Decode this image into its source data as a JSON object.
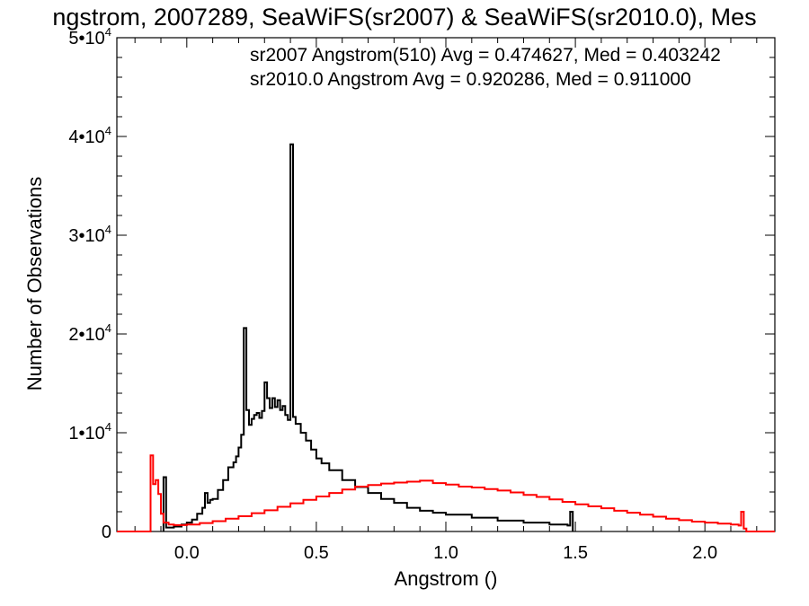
{
  "chart_data": {
    "type": "line",
    "title": "ngstrom, 2007289, SeaWiFS(sr2007) & SeaWiFS(sr2010.0), Mes",
    "xlabel": "Angstrom ()",
    "ylabel": "Number of Observations",
    "xlim": [
      -0.27,
      2.27
    ],
    "ylim": [
      0,
      50000
    ],
    "x_ticks": [
      {
        "value": 0.0,
        "label": "0.0"
      },
      {
        "value": 0.5,
        "label": "0.5"
      },
      {
        "value": 1.0,
        "label": "1.0"
      },
      {
        "value": 1.5,
        "label": "1.5"
      },
      {
        "value": 2.0,
        "label": "2.0"
      }
    ],
    "y_ticks": [
      {
        "value": 0,
        "mantissa": "0",
        "exponent": ""
      },
      {
        "value": 10000,
        "mantissa": "1•10",
        "exponent": "4"
      },
      {
        "value": 20000,
        "mantissa": "2•10",
        "exponent": "4"
      },
      {
        "value": 30000,
        "mantissa": "3•10",
        "exponent": "4"
      },
      {
        "value": 40000,
        "mantissa": "4•10",
        "exponent": "4"
      },
      {
        "value": 50000,
        "mantissa": "5•10",
        "exponent": "4"
      }
    ],
    "legend_placement": "top-right",
    "series": [
      {
        "name": "sr2007 Angstrom(510) Avg = 0.474627, Med = 0.403242",
        "color": "#000000",
        "step": true,
        "points": [
          [
            -0.09,
            0
          ],
          [
            -0.09,
            5500
          ],
          [
            -0.08,
            5500
          ],
          [
            -0.08,
            400
          ],
          [
            -0.05,
            500
          ],
          [
            -0.02,
            700
          ],
          [
            0.0,
            900
          ],
          [
            0.02,
            1200
          ],
          [
            0.04,
            1800
          ],
          [
            0.06,
            2400
          ],
          [
            0.07,
            3900
          ],
          [
            0.08,
            2900
          ],
          [
            0.09,
            3200
          ],
          [
            0.1,
            3300
          ],
          [
            0.12,
            4200
          ],
          [
            0.14,
            5200
          ],
          [
            0.16,
            6500
          ],
          [
            0.18,
            7000
          ],
          [
            0.19,
            7600
          ],
          [
            0.2,
            8500
          ],
          [
            0.21,
            9800
          ],
          [
            0.22,
            20600
          ],
          [
            0.23,
            12300
          ],
          [
            0.24,
            10800
          ],
          [
            0.25,
            11400
          ],
          [
            0.26,
            11800
          ],
          [
            0.27,
            12000
          ],
          [
            0.28,
            11500
          ],
          [
            0.29,
            12200
          ],
          [
            0.3,
            15100
          ],
          [
            0.31,
            13500
          ],
          [
            0.32,
            12500
          ],
          [
            0.33,
            13500
          ],
          [
            0.34,
            12600
          ],
          [
            0.35,
            13300
          ],
          [
            0.36,
            12300
          ],
          [
            0.37,
            12700
          ],
          [
            0.38,
            11800
          ],
          [
            0.39,
            11300
          ],
          [
            0.4,
            39200
          ],
          [
            0.41,
            11600
          ],
          [
            0.42,
            10900
          ],
          [
            0.44,
            10000
          ],
          [
            0.46,
            9200
          ],
          [
            0.48,
            8300
          ],
          [
            0.5,
            7400
          ],
          [
            0.52,
            6900
          ],
          [
            0.55,
            6200
          ],
          [
            0.6,
            5200
          ],
          [
            0.65,
            4500
          ],
          [
            0.7,
            3900
          ],
          [
            0.75,
            3300
          ],
          [
            0.8,
            2900
          ],
          [
            0.85,
            2400
          ],
          [
            0.9,
            2100
          ],
          [
            0.95,
            1900
          ],
          [
            1.0,
            1700
          ],
          [
            1.1,
            1400
          ],
          [
            1.2,
            1100
          ],
          [
            1.3,
            900
          ],
          [
            1.4,
            700
          ],
          [
            1.47,
            600
          ],
          [
            1.48,
            2000
          ],
          [
            1.49,
            0
          ]
        ]
      },
      {
        "name": "sr2010.0 Angstrom Avg = 0.920286, Med = 0.911000",
        "color": "#ff0000",
        "step": true,
        "points": [
          [
            -0.27,
            0
          ],
          [
            -0.15,
            0
          ],
          [
            -0.14,
            7700
          ],
          [
            -0.13,
            4800
          ],
          [
            -0.12,
            5200
          ],
          [
            -0.11,
            3800
          ],
          [
            -0.1,
            1800
          ],
          [
            -0.09,
            900
          ],
          [
            -0.07,
            700
          ],
          [
            -0.05,
            650
          ],
          [
            0.0,
            700
          ],
          [
            0.05,
            850
          ],
          [
            0.1,
            1050
          ],
          [
            0.15,
            1300
          ],
          [
            0.2,
            1550
          ],
          [
            0.25,
            1850
          ],
          [
            0.3,
            2150
          ],
          [
            0.35,
            2500
          ],
          [
            0.4,
            2850
          ],
          [
            0.45,
            3200
          ],
          [
            0.5,
            3550
          ],
          [
            0.55,
            3900
          ],
          [
            0.6,
            4250
          ],
          [
            0.65,
            4550
          ],
          [
            0.7,
            4700
          ],
          [
            0.75,
            4850
          ],
          [
            0.8,
            4950
          ],
          [
            0.85,
            5050
          ],
          [
            0.9,
            5150
          ],
          [
            0.95,
            4900
          ],
          [
            1.0,
            4750
          ],
          [
            1.05,
            4550
          ],
          [
            1.1,
            4450
          ],
          [
            1.15,
            4300
          ],
          [
            1.2,
            4150
          ],
          [
            1.25,
            3950
          ],
          [
            1.3,
            3700
          ],
          [
            1.35,
            3500
          ],
          [
            1.4,
            3250
          ],
          [
            1.45,
            3000
          ],
          [
            1.5,
            2750
          ],
          [
            1.55,
            2550
          ],
          [
            1.6,
            2350
          ],
          [
            1.65,
            2100
          ],
          [
            1.7,
            1900
          ],
          [
            1.75,
            1700
          ],
          [
            1.8,
            1500
          ],
          [
            1.85,
            1300
          ],
          [
            1.9,
            1150
          ],
          [
            1.95,
            1000
          ],
          [
            2.0,
            900
          ],
          [
            2.05,
            800
          ],
          [
            2.1,
            700
          ],
          [
            2.13,
            600
          ],
          [
            2.14,
            2000
          ],
          [
            2.15,
            300
          ],
          [
            2.16,
            0
          ],
          [
            2.27,
            0
          ]
        ]
      }
    ]
  }
}
